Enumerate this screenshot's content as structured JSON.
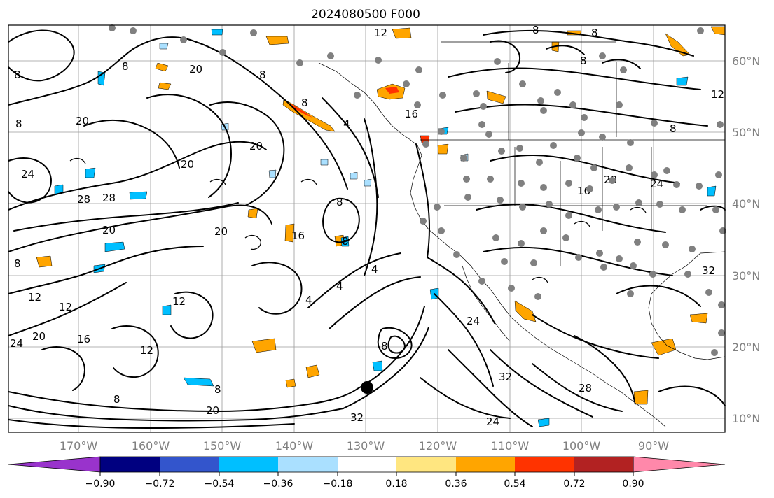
{
  "title": "2024080500 F000",
  "map": {
    "lon_ticks": [
      "170°W",
      "160°W",
      "150°W",
      "140°W",
      "130°W",
      "120°W",
      "110°W",
      "100°W",
      "90°W"
    ],
    "lat_ticks": [
      "60°N",
      "50°N",
      "40°N",
      "30°N",
      "20°N",
      "10°N"
    ],
    "contour_labels": [
      "8",
      "12",
      "16",
      "20",
      "24",
      "28",
      "32",
      "4"
    ]
  },
  "colorbar": {
    "tick_labels": [
      "−0.90",
      "−0.72",
      "−0.54",
      "−0.36",
      "−0.18",
      "0.18",
      "0.36",
      "0.54",
      "0.72",
      "0.90"
    ],
    "colors": [
      "#9933cc",
      "#000080",
      "#3355cc",
      "#00bfff",
      "#aae0ff",
      "#ffffff",
      "#ffe680",
      "#ffa500",
      "#ff3300",
      "#b22222",
      "#ff88aa"
    ]
  },
  "colors": {
    "orange": "#ffa500",
    "red": "#ff3300",
    "cyan": "#00bfff",
    "light_blue": "#aae0ff",
    "station_gray": "#808080"
  }
}
